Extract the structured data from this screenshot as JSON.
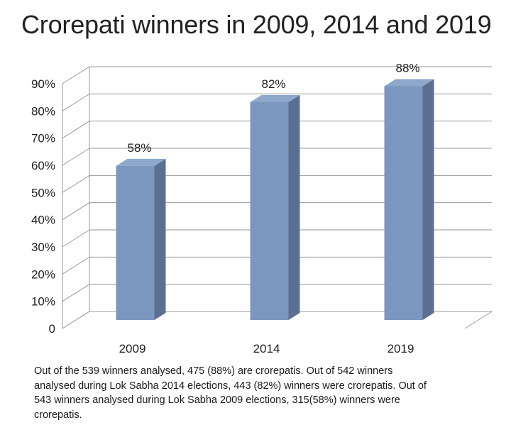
{
  "title": "Crorepati winners in 2009, 2014 and 2019",
  "chart_data": {
    "type": "bar",
    "title": "Crorepati winners in 2009, 2014 and 2019",
    "categories": [
      "2009",
      "2014",
      "2019"
    ],
    "values": [
      58,
      82,
      88
    ],
    "data_labels": [
      "58%",
      "82%",
      "88%"
    ],
    "ylim": [
      0,
      90
    ],
    "yticks": [
      0,
      10,
      20,
      30,
      40,
      50,
      60,
      70,
      80,
      90
    ],
    "ytick_labels": [
      "0",
      "10%",
      "20%",
      "30%",
      "40%",
      "50%",
      "60%",
      "70%",
      "80%",
      "90%"
    ],
    "xlabel": "",
    "ylabel": "",
    "grid": true,
    "legend": "none",
    "style": "3d-column",
    "colors": {
      "bar_front": "#7b97bf",
      "bar_side": "#5d6f91",
      "bar_top": "#8ea8cc",
      "grid": "#9a9a9a"
    }
  },
  "note": "Out of the 539 winners analysed, 475 (88%) are crorepatis. Out of 542 winners analysed during Lok Sabha 2014 elections, 443 (82%) winners were crorepatis. Out of 543 winners analysed during Lok Sabha 2009 elections, 315(58%) winners were crorepatis."
}
